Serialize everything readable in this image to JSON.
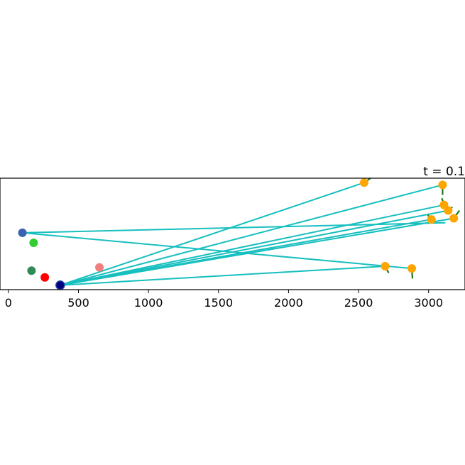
{
  "chart_data": {
    "type": "scatter",
    "title": "t = 0.1",
    "xlabel": "",
    "ylabel": "",
    "xlim": [
      -60,
      3260
    ],
    "ylim": [
      0,
      100
    ],
    "x_ticks": [
      0,
      500,
      1000,
      1500,
      2000,
      2500,
      3000
    ],
    "x_tick_labels": [
      "0",
      "500",
      "1000",
      "1500",
      "2000",
      "2500",
      "3000"
    ],
    "grid": false,
    "legend": "none",
    "colors": {
      "hub": "#000080",
      "hub_edge": "#1f3f9f",
      "line": "#17bfbf",
      "target": "#ffa500",
      "arrow": "#1a7a1a"
    },
    "scatter_points": [
      {
        "x": 100,
        "y": 51,
        "color": "#3a62b0"
      },
      {
        "x": 180,
        "y": 42,
        "color": "#32cd32"
      },
      {
        "x": 165,
        "y": 17,
        "color": "#2e8b57"
      },
      {
        "x": 260,
        "y": 11,
        "color": "#ff0000"
      },
      {
        "x": 650,
        "y": 20,
        "color": "#f08080"
      },
      {
        "x": 370,
        "y": 4,
        "color": "#000080"
      }
    ],
    "targets": [
      {
        "x": 2540,
        "y": 96,
        "dx": 45,
        "dy": 4
      },
      {
        "x": 3100,
        "y": 94,
        "dx": 0,
        "dy": -9
      },
      {
        "x": 3110,
        "y": 76,
        "dx": -15,
        "dy": 6
      },
      {
        "x": 3140,
        "y": 71,
        "dx": 30,
        "dy": 3
      },
      {
        "x": 3180,
        "y": 64,
        "dx": 40,
        "dy": 7
      },
      {
        "x": 3020,
        "y": 63,
        "dx": -25,
        "dy": 4
      },
      {
        "x": 2690,
        "y": 21,
        "dx": 25,
        "dy": -6
      },
      {
        "x": 2880,
        "y": 19,
        "dx": 5,
        "dy": -9
      }
    ],
    "connections": [
      {
        "from": [
          370,
          4
        ],
        "to": [
          2540,
          96
        ]
      },
      {
        "from": [
          370,
          4
        ],
        "to": [
          3100,
          94
        ]
      },
      {
        "from": [
          370,
          4
        ],
        "to": [
          3110,
          76
        ]
      },
      {
        "from": [
          370,
          4
        ],
        "to": [
          3140,
          71
        ]
      },
      {
        "from": [
          370,
          4
        ],
        "to": [
          3180,
          64
        ]
      },
      {
        "from": [
          370,
          4
        ],
        "to": [
          3020,
          63
        ]
      },
      {
        "from": [
          370,
          4
        ],
        "to": [
          2690,
          21
        ]
      },
      {
        "from": [
          100,
          51
        ],
        "to": [
          2880,
          19
        ]
      },
      {
        "from": [
          100,
          51
        ],
        "to": [
          3120,
          60
        ]
      }
    ]
  }
}
